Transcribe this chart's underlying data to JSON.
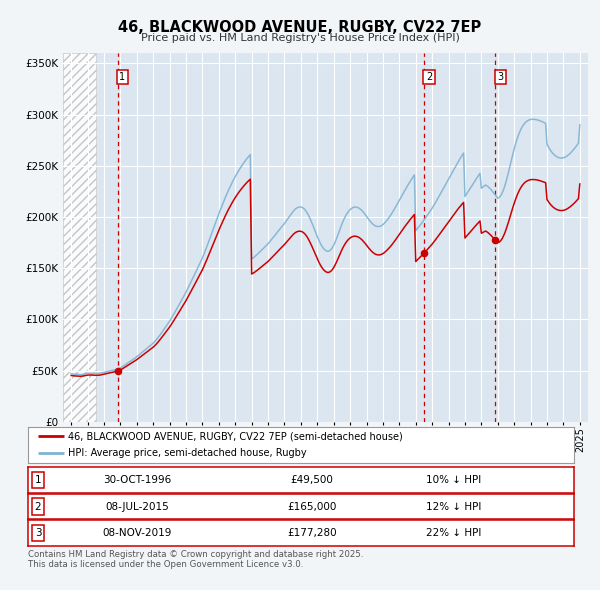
{
  "title": "46, BLACKWOOD AVENUE, RUGBY, CV22 7EP",
  "subtitle": "Price paid vs. HM Land Registry's House Price Index (HPI)",
  "background_color": "#f2f5f8",
  "plot_bg_color": "#dce6f0",
  "xlim": [
    1993.5,
    2025.5
  ],
  "ylim": [
    0,
    360000
  ],
  "yticks": [
    0,
    50000,
    100000,
    150000,
    200000,
    250000,
    300000,
    350000
  ],
  "ytick_labels": [
    "£0",
    "£50K",
    "£100K",
    "£150K",
    "£200K",
    "£250K",
    "£300K",
    "£350K"
  ],
  "xticks": [
    1994,
    1995,
    1996,
    1997,
    1998,
    1999,
    2000,
    2001,
    2002,
    2003,
    2004,
    2005,
    2006,
    2007,
    2008,
    2009,
    2010,
    2011,
    2012,
    2013,
    2014,
    2015,
    2016,
    2017,
    2018,
    2019,
    2020,
    2021,
    2022,
    2023,
    2024,
    2025
  ],
  "price_paid_color": "#cc0000",
  "hpi_color": "#7fb3d3",
  "vline_color": "#cc0000",
  "marker_color": "#cc0000",
  "hatch_end": 1995.5,
  "transactions": [
    {
      "date_year": 1996.83,
      "price": 49500,
      "label": "1"
    },
    {
      "date_year": 2015.52,
      "price": 165000,
      "label": "2"
    },
    {
      "date_year": 2019.85,
      "price": 177280,
      "label": "3"
    }
  ],
  "legend_entries": [
    "46, BLACKWOOD AVENUE, RUGBY, CV22 7EP (semi-detached house)",
    "HPI: Average price, semi-detached house, Rugby"
  ],
  "table_rows": [
    {
      "num": "1",
      "date": "30-OCT-1996",
      "price": "£49,500",
      "hpi": "10% ↓ HPI"
    },
    {
      "num": "2",
      "date": "08-JUL-2015",
      "price": "£165,000",
      "hpi": "12% ↓ HPI"
    },
    {
      "num": "3",
      "date": "08-NOV-2019",
      "price": "£177,280",
      "hpi": "22% ↓ HPI"
    }
  ],
  "footnote": "Contains HM Land Registry data © Crown copyright and database right 2025.\nThis data is licensed under the Open Government Licence v3.0.",
  "hpi_index": {
    "years": [
      1994.0,
      1994.083,
      1994.167,
      1994.25,
      1994.333,
      1994.417,
      1994.5,
      1994.583,
      1994.667,
      1994.75,
      1994.833,
      1994.917,
      1995.0,
      1995.083,
      1995.167,
      1995.25,
      1995.333,
      1995.417,
      1995.5,
      1995.583,
      1995.667,
      1995.75,
      1995.833,
      1995.917,
      1996.0,
      1996.083,
      1996.167,
      1996.25,
      1996.333,
      1996.417,
      1996.5,
      1996.583,
      1996.667,
      1996.75,
      1996.833,
      1996.917,
      1997.0,
      1997.083,
      1997.167,
      1997.25,
      1997.333,
      1997.417,
      1997.5,
      1997.583,
      1997.667,
      1997.75,
      1997.833,
      1997.917,
      1998.0,
      1998.083,
      1998.167,
      1998.25,
      1998.333,
      1998.417,
      1998.5,
      1998.583,
      1998.667,
      1998.75,
      1998.833,
      1998.917,
      1999.0,
      1999.083,
      1999.167,
      1999.25,
      1999.333,
      1999.417,
      1999.5,
      1999.583,
      1999.667,
      1999.75,
      1999.833,
      1999.917,
      2000.0,
      2000.083,
      2000.167,
      2000.25,
      2000.333,
      2000.417,
      2000.5,
      2000.583,
      2000.667,
      2000.75,
      2000.833,
      2000.917,
      2001.0,
      2001.083,
      2001.167,
      2001.25,
      2001.333,
      2001.417,
      2001.5,
      2001.583,
      2001.667,
      2001.75,
      2001.833,
      2001.917,
      2002.0,
      2002.083,
      2002.167,
      2002.25,
      2002.333,
      2002.417,
      2002.5,
      2002.583,
      2002.667,
      2002.75,
      2002.833,
      2002.917,
      2003.0,
      2003.083,
      2003.167,
      2003.25,
      2003.333,
      2003.417,
      2003.5,
      2003.583,
      2003.667,
      2003.75,
      2003.833,
      2003.917,
      2004.0,
      2004.083,
      2004.167,
      2004.25,
      2004.333,
      2004.417,
      2004.5,
      2004.583,
      2004.667,
      2004.75,
      2004.833,
      2004.917,
      2005.0,
      2005.083,
      2005.167,
      2005.25,
      2005.333,
      2005.417,
      2005.5,
      2005.583,
      2005.667,
      2005.75,
      2005.833,
      2005.917,
      2006.0,
      2006.083,
      2006.167,
      2006.25,
      2006.333,
      2006.417,
      2006.5,
      2006.583,
      2006.667,
      2006.75,
      2006.833,
      2006.917,
      2007.0,
      2007.083,
      2007.167,
      2007.25,
      2007.333,
      2007.417,
      2007.5,
      2007.583,
      2007.667,
      2007.75,
      2007.833,
      2007.917,
      2008.0,
      2008.083,
      2008.167,
      2008.25,
      2008.333,
      2008.417,
      2008.5,
      2008.583,
      2008.667,
      2008.75,
      2008.833,
      2008.917,
      2009.0,
      2009.083,
      2009.167,
      2009.25,
      2009.333,
      2009.417,
      2009.5,
      2009.583,
      2009.667,
      2009.75,
      2009.833,
      2009.917,
      2010.0,
      2010.083,
      2010.167,
      2010.25,
      2010.333,
      2010.417,
      2010.5,
      2010.583,
      2010.667,
      2010.75,
      2010.833,
      2010.917,
      2011.0,
      2011.083,
      2011.167,
      2011.25,
      2011.333,
      2011.417,
      2011.5,
      2011.583,
      2011.667,
      2011.75,
      2011.833,
      2011.917,
      2012.0,
      2012.083,
      2012.167,
      2012.25,
      2012.333,
      2012.417,
      2012.5,
      2012.583,
      2012.667,
      2012.75,
      2012.833,
      2012.917,
      2013.0,
      2013.083,
      2013.167,
      2013.25,
      2013.333,
      2013.417,
      2013.5,
      2013.583,
      2013.667,
      2013.75,
      2013.833,
      2013.917,
      2014.0,
      2014.083,
      2014.167,
      2014.25,
      2014.333,
      2014.417,
      2014.5,
      2014.583,
      2014.667,
      2014.75,
      2014.833,
      2014.917,
      2015.0,
      2015.083,
      2015.167,
      2015.25,
      2015.333,
      2015.417,
      2015.5,
      2015.583,
      2015.667,
      2015.75,
      2015.833,
      2015.917,
      2016.0,
      2016.083,
      2016.167,
      2016.25,
      2016.333,
      2016.417,
      2016.5,
      2016.583,
      2016.667,
      2016.75,
      2016.833,
      2016.917,
      2017.0,
      2017.083,
      2017.167,
      2017.25,
      2017.333,
      2017.417,
      2017.5,
      2017.583,
      2017.667,
      2017.75,
      2017.833,
      2017.917,
      2018.0,
      2018.083,
      2018.167,
      2018.25,
      2018.333,
      2018.417,
      2018.5,
      2018.583,
      2018.667,
      2018.75,
      2018.833,
      2018.917,
      2019.0,
      2019.083,
      2019.167,
      2019.25,
      2019.333,
      2019.417,
      2019.5,
      2019.583,
      2019.667,
      2019.75,
      2019.833,
      2019.917,
      2020.0,
      2020.083,
      2020.167,
      2020.25,
      2020.333,
      2020.417,
      2020.5,
      2020.583,
      2020.667,
      2020.75,
      2020.833,
      2020.917,
      2021.0,
      2021.083,
      2021.167,
      2021.25,
      2021.333,
      2021.417,
      2021.5,
      2021.583,
      2021.667,
      2021.75,
      2021.833,
      2021.917,
      2022.0,
      2022.083,
      2022.167,
      2022.25,
      2022.333,
      2022.417,
      2022.5,
      2022.583,
      2022.667,
      2022.75,
      2022.833,
      2022.917,
      2023.0,
      2023.083,
      2023.167,
      2023.25,
      2023.333,
      2023.417,
      2023.5,
      2023.583,
      2023.667,
      2023.75,
      2023.833,
      2023.917,
      2024.0,
      2024.083,
      2024.167,
      2024.25,
      2024.333,
      2024.417,
      2024.5,
      2024.583,
      2024.667,
      2024.75,
      2024.833,
      2024.917,
      2025.0
    ],
    "values": [
      47000,
      46800,
      46600,
      46500,
      46400,
      46300,
      46200,
      46200,
      46300,
      46500,
      46800,
      47100,
      47400,
      47500,
      47500,
      47400,
      47300,
      47200,
      47100,
      47100,
      47200,
      47400,
      47700,
      48000,
      48400,
      48700,
      49000,
      49300,
      49600,
      49900,
      50100,
      50400,
      50700,
      51000,
      51400,
      52000,
      52700,
      53500,
      54400,
      55300,
      56200,
      57100,
      58000,
      58900,
      59800,
      60700,
      61600,
      62600,
      63600,
      64700,
      65800,
      66900,
      68000,
      69100,
      70200,
      71300,
      72400,
      73500,
      74600,
      75700,
      76900,
      78300,
      79800,
      81400,
      83100,
      84900,
      86800,
      88700,
      90600,
      92500,
      94400,
      96300,
      98300,
      100500,
      102800,
      105100,
      107400,
      109800,
      112200,
      114600,
      117000,
      119400,
      121800,
      124200,
      126700,
      129400,
      132100,
      134800,
      137600,
      140400,
      143200,
      146000,
      148800,
      151600,
      154400,
      157200,
      160100,
      163400,
      166800,
      170300,
      173900,
      177500,
      181200,
      184900,
      188600,
      192300,
      195900,
      199500,
      203100,
      206600,
      210000,
      213400,
      216700,
      219900,
      223000,
      226000,
      228900,
      231700,
      234400,
      237000,
      239500,
      241900,
      244200,
      246400,
      248500,
      250500,
      252400,
      254300,
      256100,
      257800,
      259400,
      260900,
      159000,
      160000,
      161000,
      162200,
      163400,
      164700,
      166000,
      167300,
      168600,
      169900,
      171200,
      172500,
      173900,
      175500,
      177100,
      178700,
      180400,
      182100,
      183800,
      185500,
      187200,
      188900,
      190500,
      192100,
      193700,
      195500,
      197400,
      199300,
      201200,
      203100,
      204900,
      206500,
      207800,
      208800,
      209400,
      209700,
      209700,
      209300,
      208400,
      207100,
      205300,
      203100,
      200500,
      197600,
      194400,
      191100,
      187700,
      184300,
      180900,
      177800,
      174900,
      172400,
      170300,
      168600,
      167400,
      166700,
      166600,
      167100,
      168300,
      170100,
      172500,
      175400,
      178700,
      182300,
      186000,
      189700,
      193100,
      196300,
      199200,
      201800,
      203900,
      205700,
      207200,
      208300,
      209100,
      209600,
      209700,
      209500,
      209000,
      208200,
      207100,
      205800,
      204200,
      202500,
      200600,
      198700,
      196900,
      195300,
      193800,
      192600,
      191600,
      191000,
      190700,
      190700,
      191000,
      191700,
      192600,
      193800,
      195300,
      196900,
      198600,
      200500,
      202500,
      204600,
      206800,
      209100,
      211500,
      213900,
      216300,
      218700,
      221100,
      223500,
      225900,
      228200,
      230500,
      232700,
      234900,
      237000,
      239100,
      241100,
      186500,
      188200,
      189900,
      191600,
      193400,
      195200,
      197000,
      198900,
      200800,
      202700,
      204700,
      206600,
      208600,
      210800,
      213100,
      215400,
      217700,
      220100,
      222500,
      224900,
      227300,
      229700,
      232100,
      234500,
      236900,
      239400,
      241900,
      244400,
      246800,
      249200,
      251600,
      253900,
      256100,
      258300,
      260400,
      262400,
      220000,
      222000,
      224100,
      226200,
      228300,
      230400,
      232500,
      234600,
      236700,
      238700,
      240700,
      242600,
      228000,
      229000,
      230100,
      231200,
      230500,
      229500,
      228200,
      226800,
      225200,
      223500,
      221700,
      220000,
      218400,
      219000,
      220500,
      222800,
      225900,
      229700,
      234100,
      239100,
      244500,
      250100,
      255700,
      261200,
      266400,
      271200,
      275600,
      279500,
      282900,
      285900,
      288400,
      290400,
      292000,
      293200,
      294100,
      294800,
      295200,
      295400,
      295400,
      295300,
      295100,
      294800,
      294400,
      293900,
      293300,
      292700,
      292100,
      291500,
      271000,
      268500,
      266200,
      264200,
      262500,
      261100,
      259900,
      259000,
      258300,
      257800,
      257600,
      257600,
      257800,
      258300,
      259000,
      259900,
      261000,
      262200,
      263600,
      265100,
      266700,
      268400,
      270200,
      272100,
      290000
    ]
  }
}
